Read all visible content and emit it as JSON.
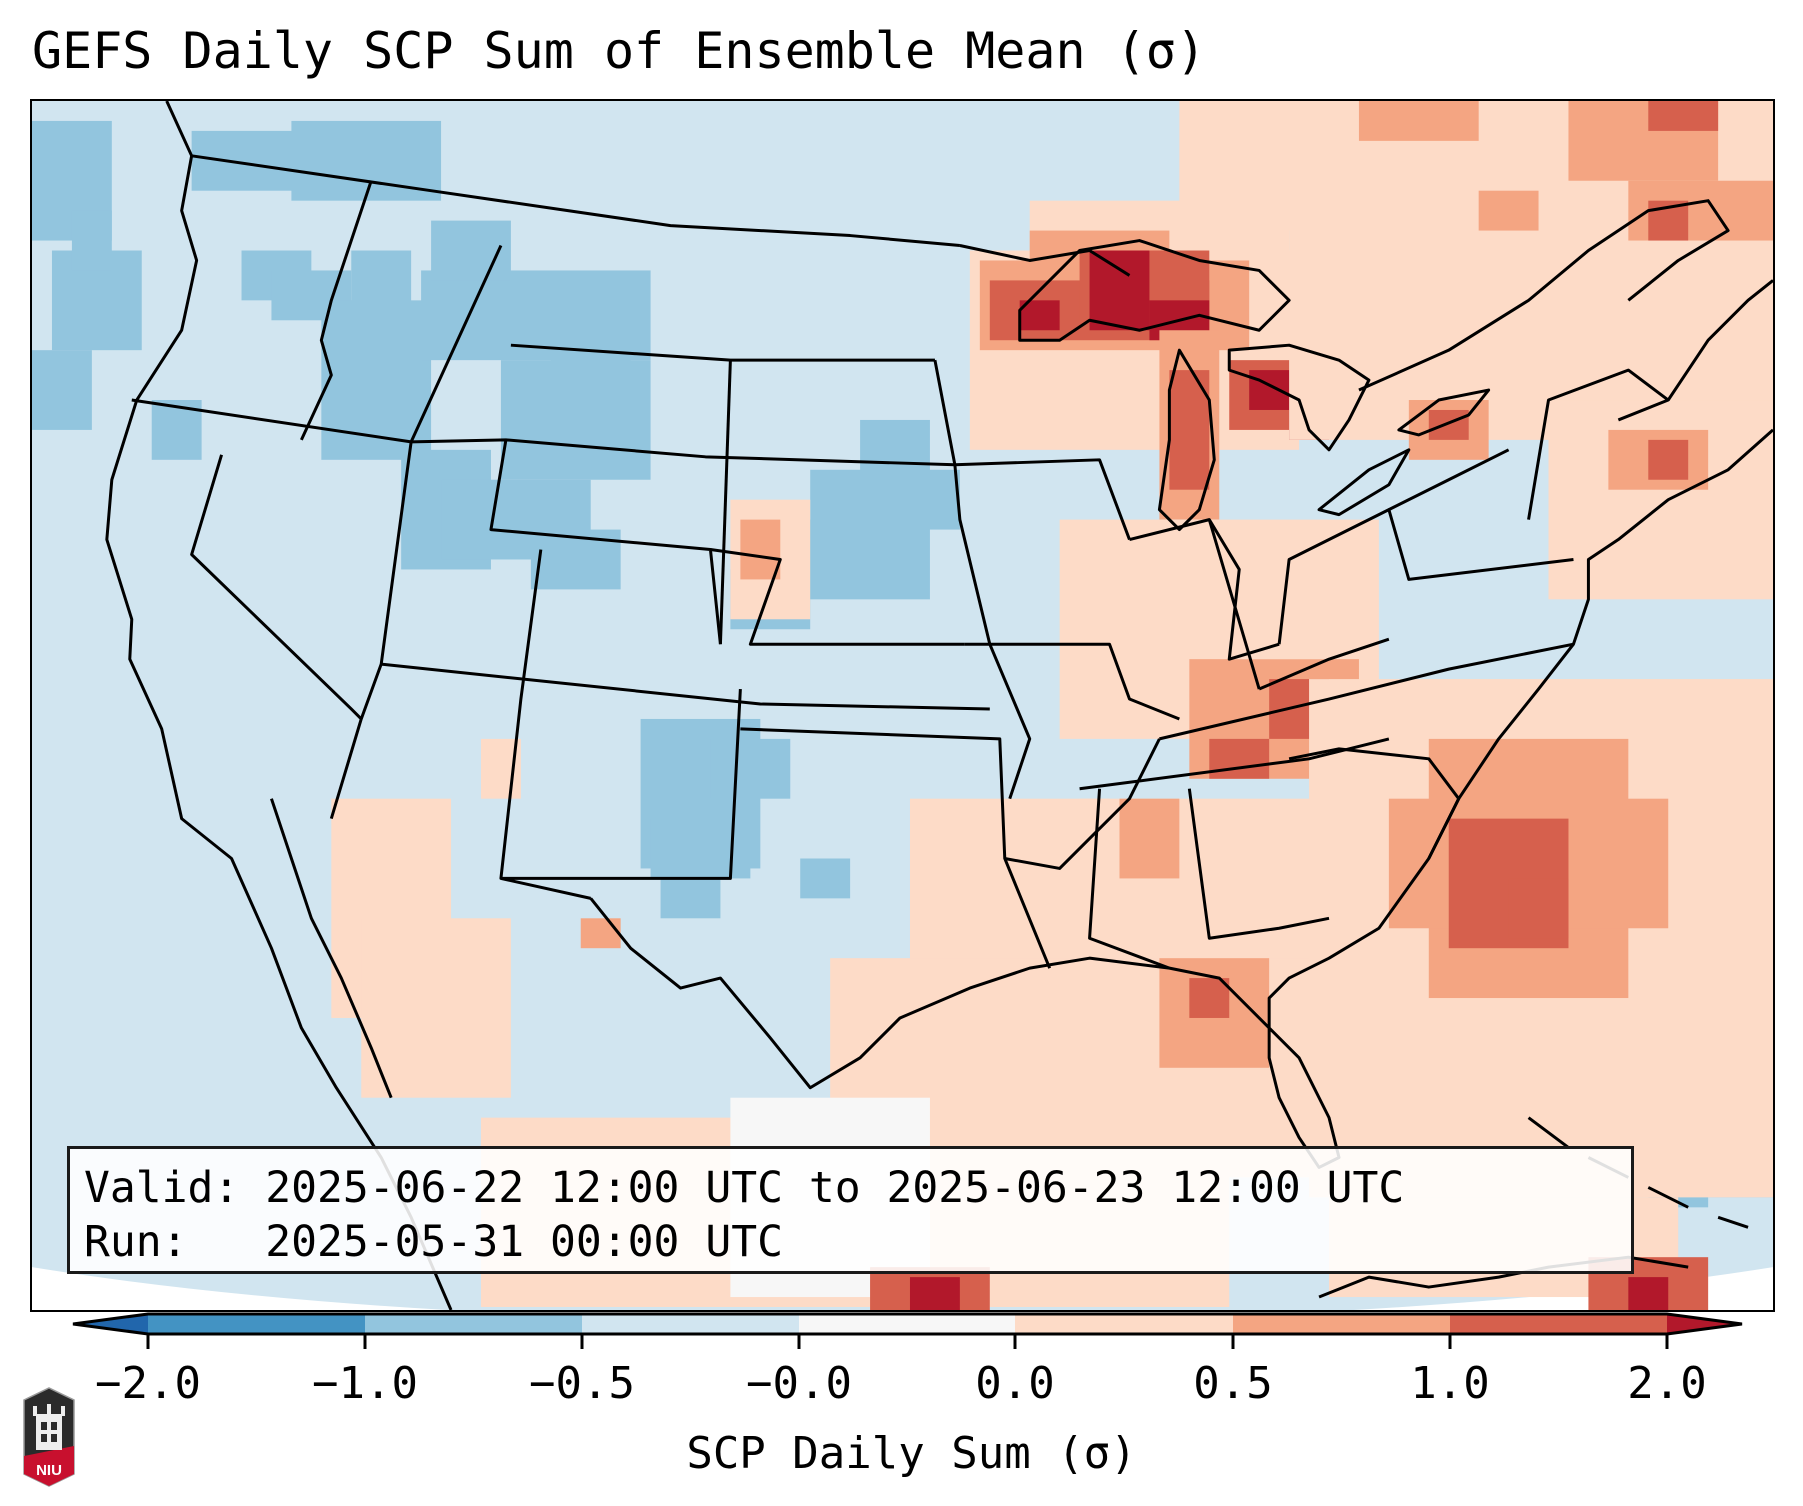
{
  "title": "GEFS Daily SCP Sum of Ensemble Mean (σ)",
  "info": {
    "valid_line": "Valid: 2025-06-22 12:00 UTC to 2025-06-23 12:00 UTC",
    "run_line": "Run:   2025-05-31 00:00 UTC"
  },
  "colorbar": {
    "label": "SCP Daily Sum (σ)",
    "ticks": [
      "−2.0",
      "−1.0",
      "−0.5",
      "−0.0",
      "0.0",
      "0.5",
      "1.0",
      "2.0"
    ],
    "colors": {
      "below_min": "#2166ac",
      "n2_n1": "#4393c3",
      "n1_n05": "#92c5de",
      "n05_n0": "#d1e5f0",
      "n0_0": "#f7f7f7",
      "0_05": "#fddbc7",
      "05_1": "#f4a582",
      "1_2": "#d6604d",
      "above_max": "#b2182b"
    },
    "extend": "both"
  },
  "logo": {
    "text": "NIU"
  },
  "chart_data": {
    "type": "heatmap",
    "title": "GEFS Daily SCP Sum of Ensemble Mean (σ)",
    "variable": "SCP Daily Sum (σ)",
    "region": "Contiguous United States",
    "levels": [
      -2.0,
      -1.0,
      -0.5,
      -0.0,
      0.0,
      0.5,
      1.0,
      2.0
    ],
    "valid": "2025-06-22 12:00 UTC to 2025-06-23 12:00 UTC",
    "run": "2025-05-31 00:00 UTC",
    "features": [
      {
        "area": "Great Lakes (Superior / Michigan / Huron)",
        "range": "1.0 to >2.0"
      },
      {
        "area": "Western Atlantic off Carolinas",
        "range": "0.5 to 2.0"
      },
      {
        "area": "Tennessee / Kentucky / Virginia",
        "range": "0.5 to 2.0"
      },
      {
        "area": "Northeast / New England",
        "range": "0.0 to 2.0"
      },
      {
        "area": "Gulf Coast / Florida",
        "range": "0.0 to 1.0"
      },
      {
        "area": "Idaho / Montana / Wyoming",
        "range": "-1.0 to -0.5"
      },
      {
        "area": "West Texas / New Mexico",
        "range": "-1.0 to -0.5"
      },
      {
        "area": "Nebraska / Kansas / Iowa",
        "range": "-1.0 to -0.5"
      },
      {
        "area": "Pacific Northwest offshore",
        "range": "-1.0 to -0.5"
      },
      {
        "area": "Remainder of CONUS",
        "range": "-0.5 to -0.0"
      }
    ]
  }
}
